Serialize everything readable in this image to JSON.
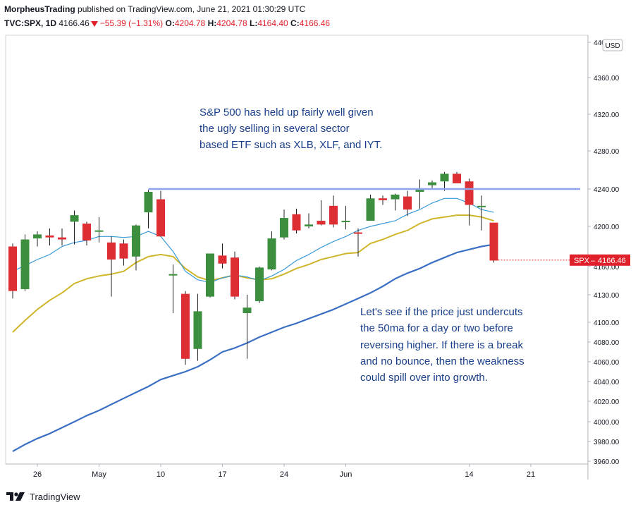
{
  "header": {
    "author": "MorpheusTrading",
    "published_text": "published on TradingView.com, June 21, 2021 01:30:29 UTC",
    "symbol": "TVC:SPX, 1D",
    "last": "4166.46",
    "change": "−55.39 (−1.31%)",
    "o_label": "O:",
    "o": "4204.78",
    "h_label": "H:",
    "h": "4204.78",
    "l_label": "L:",
    "l": "4164.40",
    "c_label": "C:",
    "c": "4166.46"
  },
  "currency_badge": "USD",
  "price_tag": {
    "symbol": "SPX",
    "value": "4166.46",
    "color": "#e0202a"
  },
  "annotations": [
    {
      "lines": [
        "S&P 500 has held up fairly well given",
        "the ugly selling in several sector",
        "based ETF such as XLB, XLF, and IYT."
      ]
    },
    {
      "lines": [
        "Let's see if the price just undercuts",
        "the 50ma for a day or two before",
        "reversing higher.  If there is a break",
        "and no bounce, then the weakness",
        "could spill over into growth."
      ]
    }
  ],
  "footer": {
    "brand": "TradingView"
  },
  "colors": {
    "up": "#3b8f3f",
    "down": "#dc2e33",
    "ma_fast": "#3a9ad9",
    "ma_mid": "#cfb52b",
    "ma_slow": "#3a6fc4",
    "resistance": "#8ea4ea"
  },
  "chart_data": {
    "type": "candlestick",
    "y_ticks": [
      3960,
      3980,
      4000,
      4020,
      4040,
      4060,
      4080,
      4100,
      4130,
      4160,
      4200,
      4240,
      4280,
      4320,
      4360,
      4400
    ],
    "y_tick_labels": [
      "3960.00",
      "3980.00",
      "4000.00",
      "4020.00",
      "4040.00",
      "4060.00",
      "4080.00",
      "4100.00",
      "4130.00",
      "4160.00",
      "4200.00",
      "4240.00",
      "4280.00",
      "4320.00",
      "4360.00",
      "4400.00"
    ],
    "x_labels": [
      {
        "label": "26",
        "index": 2
      },
      {
        "label": "May",
        "index": 7
      },
      {
        "label": "10",
        "index": 12
      },
      {
        "label": "17",
        "index": 17
      },
      {
        "label": "24",
        "index": 22
      },
      {
        "label": "Jun",
        "index": 27
      },
      {
        "label": "14",
        "index": 37
      },
      {
        "label": "21",
        "index": 42
      }
    ],
    "candles": [
      {
        "o": 4180,
        "h": 4183,
        "l": 4126,
        "c": 4134
      },
      {
        "o": 4136,
        "h": 4192,
        "l": 4134,
        "c": 4187
      },
      {
        "o": 4188,
        "h": 4195,
        "l": 4180,
        "c": 4192
      },
      {
        "o": 4191,
        "h": 4198,
        "l": 4181,
        "c": 4189
      },
      {
        "o": 4189,
        "h": 4198,
        "l": 4181,
        "c": 4187
      },
      {
        "o": 4205,
        "h": 4217,
        "l": 4182,
        "c": 4212
      },
      {
        "o": 4203,
        "h": 4205,
        "l": 4181,
        "c": 4186
      },
      {
        "o": 4195,
        "h": 4210,
        "l": 4184,
        "c": 4196
      },
      {
        "o": 4184,
        "h": 4190,
        "l": 4128,
        "c": 4167
      },
      {
        "o": 4183,
        "h": 4187,
        "l": 4161,
        "c": 4168
      },
      {
        "o": 4170,
        "h": 4202,
        "l": 4156,
        "c": 4201
      },
      {
        "o": 4215,
        "h": 4239,
        "l": 4198,
        "c": 4237
      },
      {
        "o": 4229,
        "h": 4238,
        "l": 4190,
        "c": 4190
      },
      {
        "o": 4152,
        "h": 4162,
        "l": 4110,
        "c": 4152
      },
      {
        "o": 4131,
        "h": 4134,
        "l": 4057,
        "c": 4063
      },
      {
        "o": 4073,
        "h": 4131,
        "l": 4061,
        "c": 4112
      },
      {
        "o": 4128,
        "h": 4172,
        "l": 4127,
        "c": 4173
      },
      {
        "o": 4171,
        "h": 4183,
        "l": 4158,
        "c": 4163
      },
      {
        "o": 4169,
        "h": 4175,
        "l": 4125,
        "c": 4128
      },
      {
        "o": 4110,
        "h": 4130,
        "l": 4063,
        "c": 4116
      },
      {
        "o": 4123,
        "h": 4160,
        "l": 4121,
        "c": 4159
      },
      {
        "o": 4157,
        "h": 4195,
        "l": 4156,
        "c": 4188
      },
      {
        "o": 4189,
        "h": 4218,
        "l": 4187,
        "c": 4209
      },
      {
        "o": 4213,
        "h": 4219,
        "l": 4193,
        "c": 4196
      },
      {
        "o": 4200,
        "h": 4214,
        "l": 4198,
        "c": 4202
      },
      {
        "o": 4206,
        "h": 4228,
        "l": 4201,
        "c": 4202
      },
      {
        "o": 4222,
        "h": 4233,
        "l": 4199,
        "c": 4202
      },
      {
        "o": 4205,
        "h": 4222,
        "l": 4197,
        "c": 4206
      },
      {
        "o": 4194,
        "h": 4198,
        "l": 4170,
        "c": 4193
      },
      {
        "o": 4206,
        "h": 4234,
        "l": 4206,
        "c": 4230
      },
      {
        "o": 4230,
        "h": 4233,
        "l": 4223,
        "c": 4228
      },
      {
        "o": 4229,
        "h": 4235,
        "l": 4217,
        "c": 4234
      },
      {
        "o": 4232,
        "h": 4238,
        "l": 4211,
        "c": 4218
      },
      {
        "o": 4237,
        "h": 4250,
        "l": 4219,
        "c": 4240
      },
      {
        "o": 4244,
        "h": 4249,
        "l": 4241,
        "c": 4247
      },
      {
        "o": 4248,
        "h": 4258,
        "l": 4238,
        "c": 4256
      },
      {
        "o": 4256,
        "h": 4258,
        "l": 4247,
        "c": 4246
      },
      {
        "o": 4248,
        "h": 4251,
        "l": 4201,
        "c": 4223
      },
      {
        "o": 4221,
        "h": 4233,
        "l": 4196,
        "c": 4222
      },
      {
        "o": 4204,
        "h": 4204,
        "l": 4164,
        "c": 4166
      }
    ],
    "ma_fast": [
      4155,
      4161,
      4167,
      4172,
      4180,
      4184,
      4186,
      4190,
      4190,
      4189,
      4190,
      4195,
      4190,
      4175,
      4155,
      4146,
      4143,
      4148,
      4151,
      4149,
      4145,
      4150,
      4157,
      4166,
      4172,
      4179,
      4185,
      4190,
      4196,
      4200,
      4203,
      4206,
      4213,
      4218,
      4225,
      4230,
      4230,
      4225,
      4218,
      4215
    ],
    "ma_mid": [
      4090,
      4102,
      4114,
      4124,
      4132,
      4142,
      4147,
      4150,
      4152,
      4155,
      4164,
      4170,
      4172,
      4170,
      4158,
      4149,
      4145,
      4148,
      4151,
      4148,
      4146,
      4147,
      4152,
      4158,
      4162,
      4167,
      4170,
      4173,
      4174,
      4183,
      4187,
      4192,
      4196,
      4203,
      4208,
      4210,
      4212,
      4212,
      4210,
      4206
    ],
    "ma_slow": [
      3970,
      3977,
      3983,
      3988,
      3994,
      4000,
      4006,
      4011,
      4017,
      4023,
      4029,
      4035,
      4042,
      4046,
      4050,
      4055,
      4062,
      4070,
      4074,
      4079,
      4085,
      4090,
      4095,
      4099,
      4104,
      4109,
      4114,
      4120,
      4126,
      4132,
      4139,
      4147,
      4153,
      4158,
      4164,
      4169,
      4174,
      4177,
      4180,
      4182
    ],
    "resistance": {
      "from_index": 11,
      "to_index": 46,
      "value": 4240
    },
    "last_price": 4166.46
  }
}
